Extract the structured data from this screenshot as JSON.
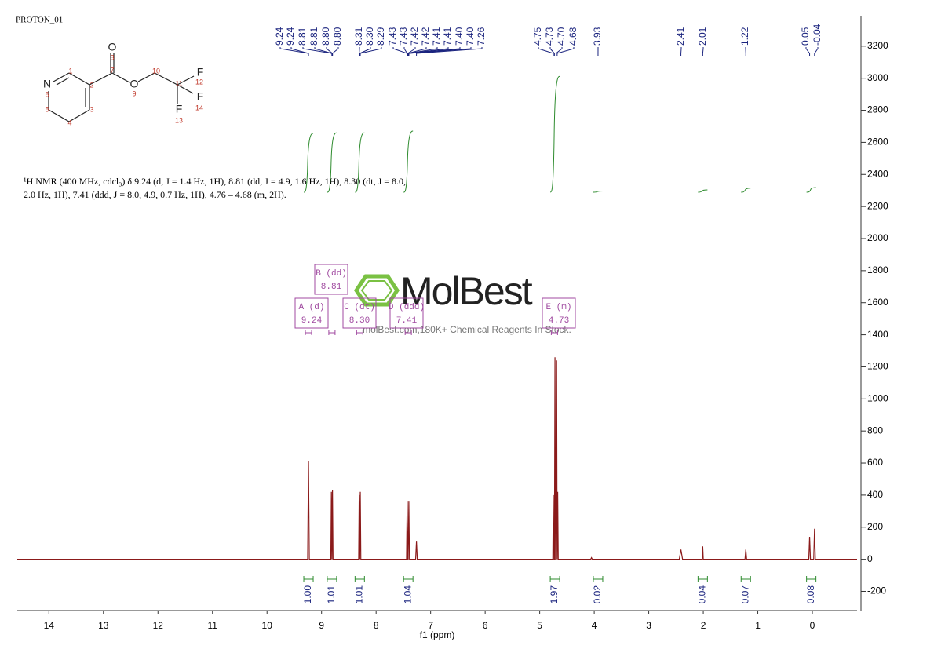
{
  "chart_data": {
    "type": "line",
    "title": "PROTON_01",
    "x_label": "f1 (ppm)",
    "description": [
      "¹H NMR (400 MHz, cdcl₃) δ 9.24 (d, J = 1.4 Hz, 1H), 8.81 (dd, J = 4.9, 1.6 Hz, 1H), 8.30 (dt, J = 8.0,",
      "2.0 Hz, 1H), 7.41 (ddd, J = 8.0, 4.9, 0.7 Hz, 1H), 4.76 – 4.68 (m, 2H)."
    ],
    "watermark": {
      "brand": "MolBest",
      "tagline": "molBest.com,180K+ Chemical Reagents In Stock."
    },
    "molecule": {
      "atoms": [
        "N",
        "O",
        "O",
        "F",
        "F",
        "F"
      ],
      "numbers": [
        1,
        2,
        3,
        4,
        5,
        6,
        7,
        8,
        9,
        10,
        11,
        12,
        13,
        14
      ]
    },
    "xlim": [
      14.58,
      -0.82
    ],
    "xticks": [
      14,
      13,
      12,
      11,
      10,
      9,
      8,
      7,
      6,
      5,
      4,
      3,
      2,
      1,
      0
    ],
    "ylim": [
      -320,
      3390
    ],
    "yticks": [
      -200,
      0,
      200,
      400,
      600,
      800,
      1000,
      1200,
      1400,
      1600,
      1800,
      2000,
      2200,
      2400,
      2600,
      2800,
      3000,
      3200
    ],
    "series": [
      {
        "name": "spectrum",
        "color": "#8b1a1a",
        "x": [
          14.58,
          9.255,
          9.24,
          9.225,
          8.83,
          8.82,
          8.81,
          8.81,
          8.8,
          8.79,
          8.32,
          8.31,
          8.3,
          8.3,
          8.29,
          8.28,
          7.442,
          7.43,
          7.418,
          7.412,
          7.4,
          7.388,
          7.275,
          7.26,
          7.245,
          4.76,
          4.75,
          4.74,
          4.73,
          4.72,
          4.71,
          4.7,
          4.69,
          4.68,
          4.68,
          4.67,
          4.66,
          4.065,
          4.05,
          4.035,
          2.44,
          2.41,
          2.38,
          2.02,
          2.01,
          2.0,
          1.235,
          1.22,
          1.205,
          0.065,
          0.05,
          0.035,
          -0.025,
          -0.04,
          -0.055,
          -0.82
        ],
        "values": [
          0,
          0,
          615,
          0,
          0,
          420,
          0,
          0,
          430,
          0,
          0,
          400,
          0,
          0,
          420,
          0,
          0,
          360,
          0,
          0,
          360,
          0,
          0,
          110,
          0,
          0,
          400,
          0,
          0,
          1260,
          0,
          0,
          1240,
          0,
          0,
          420,
          0,
          0,
          10,
          0,
          0,
          60,
          0,
          0,
          80,
          0,
          0,
          60,
          0,
          0,
          140,
          0,
          0,
          190,
          0,
          0
        ]
      }
    ],
    "peak_labels": [
      9.24,
      9.24,
      8.81,
      8.81,
      {
        "value": 8.8,
        "label": "8.80"
      },
      {
        "value": 8.8,
        "label": "8.80"
      },
      8.31,
      {
        "value": 8.3,
        "label": "8.30"
      },
      8.29,
      7.43,
      7.43,
      7.42,
      7.42,
      7.41,
      7.41,
      {
        "value": 7.4,
        "label": "7.40"
      },
      {
        "value": 7.4,
        "label": "7.40"
      },
      7.26,
      4.75,
      4.73,
      {
        "value": 4.7,
        "label": "4.70"
      },
      4.68,
      3.93,
      2.41,
      2.01,
      1.22,
      0.05,
      -0.04
    ],
    "integrals": [
      {
        "position": 9.24,
        "value": {
          "value": 1,
          "label": "1.00"
        }
      },
      {
        "position": 8.81,
        "value": 1.01
      },
      {
        "position": 8.3,
        "value": 1.01
      },
      {
        "position": 7.41,
        "value": 1.04
      },
      {
        "position": 4.72,
        "value": 1.97
      },
      {
        "position": 3.93,
        "value": 0.02
      },
      {
        "position": 2.01,
        "value": 0.04
      },
      {
        "position": 1.22,
        "value": 0.07
      },
      {
        "position": 0.02,
        "value": 0.08
      }
    ],
    "multiplets": [
      {
        "label": "A (d)",
        "shift": 9.24
      },
      {
        "label": "B (dd)",
        "shift": 8.81
      },
      {
        "label": "C (dt)",
        "shift": {
          "value": 8.3,
          "label": "8.30"
        }
      },
      {
        "label": "D (ddd)",
        "shift": 7.41
      },
      {
        "label": "E (m)",
        "shift": 4.73
      }
    ]
  }
}
